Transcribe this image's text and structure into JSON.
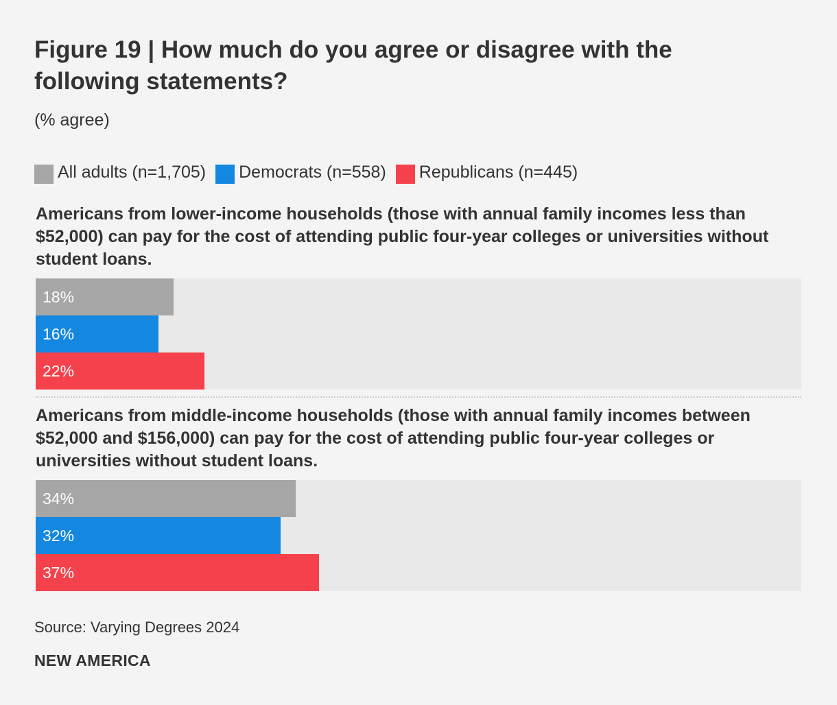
{
  "chart_data": {
    "type": "bar",
    "orientation": "horizontal",
    "title": "Figure 19 | How much do you agree or disagree with the following statements?",
    "subtitle": "(% agree)",
    "xlim": [
      0,
      100
    ],
    "legend": [
      {
        "name": "All adults (n=1,705)",
        "color": "#a6a6a6"
      },
      {
        "name": "Democrats (n=558)",
        "color": "#1487e0"
      },
      {
        "name": "Republicans (n=445)",
        "color": "#f5414b"
      }
    ],
    "groups": [
      {
        "label": "Americans from lower-income households (those with annual family incomes less than $52,000) can pay for the cost of attending public four-year colleges or universities without student loans.",
        "values": [
          18,
          16,
          22
        ],
        "labels": [
          "18%",
          "16%",
          "22%"
        ]
      },
      {
        "label": "Americans from middle-income households (those with annual family incomes between $52,000 and $156,000) can pay for the cost of attending public four-year colleges or universities without student loans.",
        "values": [
          34,
          32,
          37
        ],
        "labels": [
          "34%",
          "32%",
          "37%"
        ]
      }
    ],
    "source": "Source: Varying Degrees 2024"
  },
  "brand": "NEW AMERICA"
}
